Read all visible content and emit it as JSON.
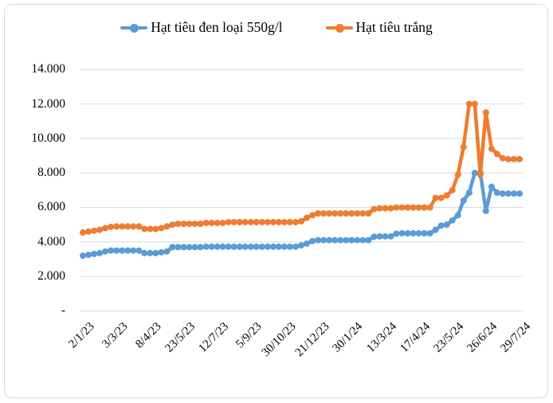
{
  "legend": [
    {
      "label": "Hạt tiêu đen loại 550g/l",
      "color": "#5B9BD5"
    },
    {
      "label": "Hạt tiêu trắng",
      "color": "#ED7D31"
    }
  ],
  "colors": {
    "series_blue": "#5B9BD5",
    "series_orange": "#ED7D31",
    "gridline": "#D9D9D9",
    "frame_border": "#D8D8D8",
    "text": "#000000",
    "background": "#FFFFFF"
  },
  "chart_data": {
    "type": "line",
    "title": "",
    "xlabel": "",
    "ylabel": "",
    "ylim": [
      0,
      14000
    ],
    "grid": "horizontal",
    "legend_position": "top",
    "y_tick_values": [
      14000,
      12000,
      10000,
      8000,
      6000,
      4000,
      2000,
      0
    ],
    "y_tick_labels": [
      "14.000",
      "12.000",
      "10.000",
      "8.000",
      "6.000",
      "4.000",
      "2.000",
      "-"
    ],
    "x_tick_labels": [
      "2/1/23",
      "3/3/23",
      "8/4/23",
      "23/5/23",
      "12/7/23",
      "5/9/23",
      "30/10/23",
      "21/12/23",
      "30/1/24",
      "13/3/24",
      "17/4/24",
      "23/5/24",
      "26/6/24",
      "29/7/24"
    ],
    "x_label_every": 6,
    "n_points": 79,
    "series": [
      {
        "name": "Hạt tiêu đen loại 550g/l",
        "color": "#5B9BD5",
        "values": [
          3200,
          3250,
          3300,
          3350,
          3450,
          3500,
          3500,
          3500,
          3500,
          3500,
          3500,
          3350,
          3350,
          3350,
          3400,
          3450,
          3700,
          3700,
          3700,
          3700,
          3700,
          3700,
          3720,
          3720,
          3720,
          3720,
          3720,
          3720,
          3720,
          3720,
          3720,
          3720,
          3720,
          3720,
          3720,
          3720,
          3720,
          3720,
          3720,
          3800,
          3900,
          4050,
          4100,
          4100,
          4100,
          4100,
          4100,
          4100,
          4100,
          4100,
          4100,
          4100,
          4300,
          4320,
          4320,
          4320,
          4480,
          4500,
          4500,
          4500,
          4500,
          4500,
          4500,
          4700,
          4950,
          5000,
          5250,
          5550,
          6400,
          6850,
          8000,
          8000,
          5800,
          7200,
          6850,
          6800,
          6800,
          6800,
          6800
        ]
      },
      {
        "name": "Hạt tiêu trắng",
        "color": "#ED7D31",
        "values": [
          4550,
          4600,
          4650,
          4700,
          4800,
          4870,
          4900,
          4900,
          4900,
          4900,
          4900,
          4750,
          4750,
          4750,
          4800,
          4900,
          5000,
          5050,
          5050,
          5050,
          5050,
          5050,
          5100,
          5100,
          5100,
          5100,
          5150,
          5150,
          5150,
          5150,
          5150,
          5150,
          5150,
          5150,
          5150,
          5150,
          5150,
          5150,
          5150,
          5200,
          5400,
          5550,
          5650,
          5650,
          5650,
          5650,
          5650,
          5650,
          5650,
          5650,
          5650,
          5650,
          5900,
          5950,
          5950,
          5950,
          6000,
          6000,
          6000,
          6000,
          6000,
          6000,
          6000,
          6550,
          6550,
          6700,
          7000,
          7900,
          9500,
          12000,
          12000,
          7900,
          11500,
          9400,
          9100,
          8850,
          8800,
          8800,
          8800
        ]
      }
    ]
  }
}
